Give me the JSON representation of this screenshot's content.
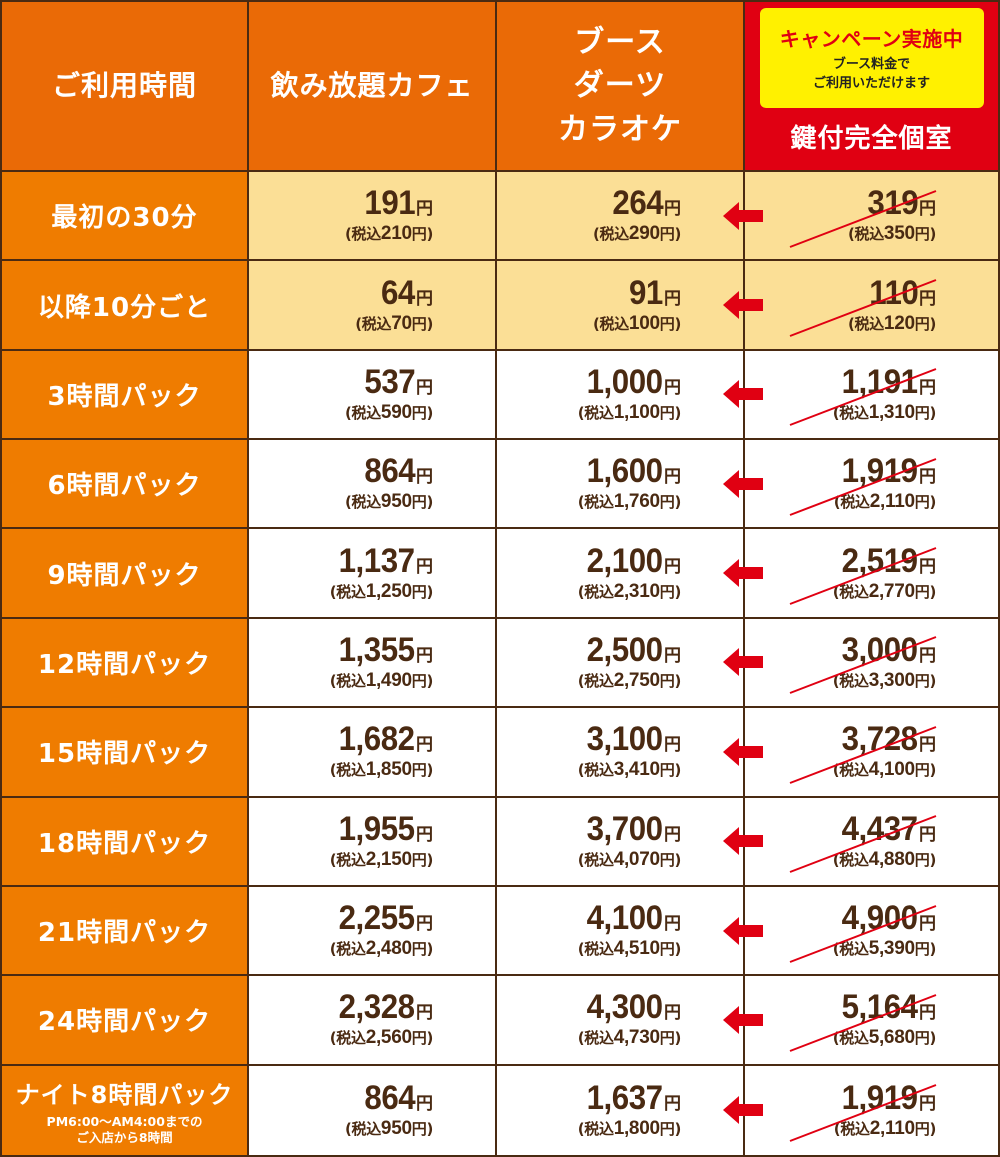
{
  "header": {
    "col1": "ご利用時間",
    "col2": "飲み放題カフェ",
    "col3_lines": [
      "ブース",
      "ダーツ",
      "カラオケ"
    ],
    "promo_title": "キャンペーン実施中",
    "promo_sub1": "ブース料金で",
    "promo_sub2": "ご利用いただけます",
    "col4": "鍵付完全個室"
  },
  "tax_label": "税込",
  "yen": "円",
  "colors": {
    "header": "#ea6a06",
    "label": "#ef7c00",
    "highlight_row": "#fbdf96",
    "accent_red": "#e00012",
    "promo_yellow": "#fff100",
    "text_brown": "#4a2a12"
  },
  "rows": [
    {
      "label": "最初の30分",
      "cafe": [
        "191",
        "210"
      ],
      "booth": [
        "264",
        "290"
      ],
      "private": [
        "319",
        "350"
      ],
      "highlight": true
    },
    {
      "label": "以降10分ごと",
      "cafe": [
        "64",
        "70"
      ],
      "booth": [
        "91",
        "100"
      ],
      "private": [
        "110",
        "120"
      ],
      "highlight": true
    },
    {
      "label": "3時間パック",
      "cafe": [
        "537",
        "590"
      ],
      "booth": [
        "1,000",
        "1,100"
      ],
      "private": [
        "1,191",
        "1,310"
      ]
    },
    {
      "label": "6時間パック",
      "cafe": [
        "864",
        "950"
      ],
      "booth": [
        "1,600",
        "1,760"
      ],
      "private": [
        "1,919",
        "2,110"
      ]
    },
    {
      "label": "9時間パック",
      "cafe": [
        "1,137",
        "1,250"
      ],
      "booth": [
        "2,100",
        "2,310"
      ],
      "private": [
        "2,519",
        "2,770"
      ]
    },
    {
      "label": "12時間パック",
      "cafe": [
        "1,355",
        "1,490"
      ],
      "booth": [
        "2,500",
        "2,750"
      ],
      "private": [
        "3,000",
        "3,300"
      ]
    },
    {
      "label": "15時間パック",
      "cafe": [
        "1,682",
        "1,850"
      ],
      "booth": [
        "3,100",
        "3,410"
      ],
      "private": [
        "3,728",
        "4,100"
      ]
    },
    {
      "label": "18時間パック",
      "cafe": [
        "1,955",
        "2,150"
      ],
      "booth": [
        "3,700",
        "4,070"
      ],
      "private": [
        "4,437",
        "4,880"
      ]
    },
    {
      "label": "21時間パック",
      "cafe": [
        "2,255",
        "2,480"
      ],
      "booth": [
        "4,100",
        "4,510"
      ],
      "private": [
        "4,900",
        "5,390"
      ]
    },
    {
      "label": "24時間パック",
      "cafe": [
        "2,328",
        "2,560"
      ],
      "booth": [
        "4,300",
        "4,730"
      ],
      "private": [
        "5,164",
        "5,680"
      ]
    },
    {
      "label": "ナイト8時間パック",
      "note1": "PM6:00～AM4:00までの",
      "note2": "ご入店から8時間",
      "cafe": [
        "864",
        "950"
      ],
      "booth": [
        "1,637",
        "1,800"
      ],
      "private": [
        "1,919",
        "2,110"
      ]
    }
  ]
}
